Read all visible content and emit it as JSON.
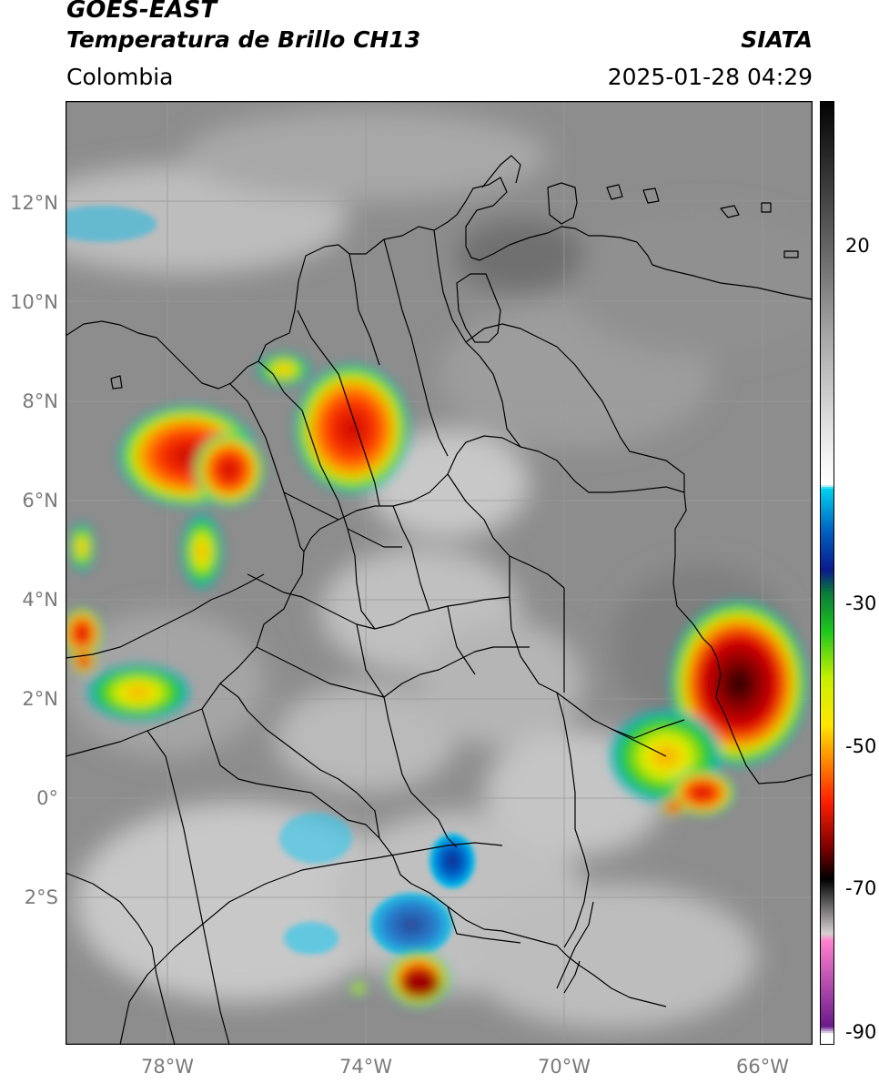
{
  "header": {
    "satellite": "GOES-EAST",
    "product": "Temperatura de Brillo CH13",
    "organization": "SIATA",
    "region": "Colombia",
    "datetime": "2025-01-28 04:29"
  },
  "axes": {
    "lat_labels": [
      "12°N",
      "10°N",
      "8°N",
      "6°N",
      "4°N",
      "2°N",
      "0°",
      "2°S"
    ],
    "lon_labels": [
      "78°W",
      "74°W",
      "70°W",
      "66°W"
    ]
  },
  "colorbar": {
    "ticks": [
      "20",
      "-30",
      "-50",
      "-70",
      "-90"
    ],
    "stops": [
      {
        "t": 30,
        "c": "#050505"
      },
      {
        "t": 10,
        "c": "#6e6e6e"
      },
      {
        "t": 0,
        "c": "#a8a8a8"
      },
      {
        "t": -15,
        "c": "#f2f2f2"
      },
      {
        "t": -19,
        "c": "#ffffff"
      },
      {
        "t": -19.5,
        "c": "#00d2f0"
      },
      {
        "t": -25,
        "c": "#0060c0"
      },
      {
        "t": -30,
        "c": "#0a1a8c"
      },
      {
        "t": -33,
        "c": "#0a7a3a"
      },
      {
        "t": -38,
        "c": "#1ec81e"
      },
      {
        "t": -44,
        "c": "#c8f000"
      },
      {
        "t": -50,
        "c": "#ffe600"
      },
      {
        "t": -54,
        "c": "#ff9600"
      },
      {
        "t": -60,
        "c": "#ff1e00"
      },
      {
        "t": -66,
        "c": "#7a0000"
      },
      {
        "t": -70,
        "c": "#000000"
      },
      {
        "t": -77,
        "c": "#d8d0d0"
      },
      {
        "t": -78,
        "c": "#ff80d0"
      },
      {
        "t": -89,
        "c": "#6a1a8a"
      },
      {
        "t": -90,
        "c": "#ffffff"
      }
    ]
  },
  "colors": {
    "background_cloud": "#8a8a8a",
    "border": "#000000",
    "grid": "#9a9a9a"
  }
}
